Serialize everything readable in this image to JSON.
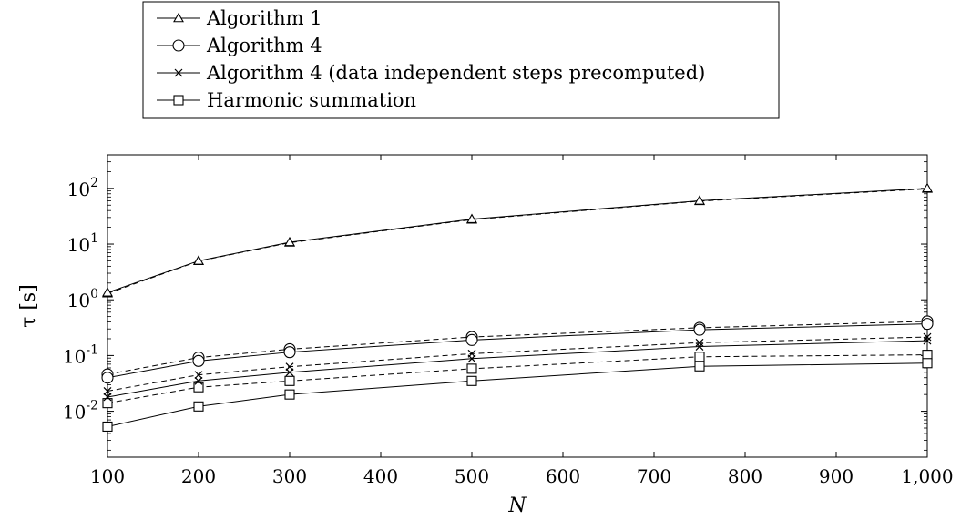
{
  "chart_data": {
    "type": "line",
    "title": "",
    "xlabel": "N",
    "ylabel": "τ [s]",
    "x_scale": "linear",
    "y_scale": "log",
    "xlim": [
      100,
      1000
    ],
    "ylim": [
      0.0015,
      400
    ],
    "x_ticks": [
      100,
      200,
      300,
      400,
      500,
      600,
      700,
      800,
      900,
      1000
    ],
    "x_tick_labels": [
      "100",
      "200",
      "300",
      "400",
      "500",
      "600",
      "700",
      "800",
      "900",
      "1,000"
    ],
    "y_ticks": [
      0.01,
      0.1,
      1,
      10,
      100
    ],
    "y_tick_labels": [
      {
        "base": "10",
        "exp": "-2"
      },
      {
        "base": "10",
        "exp": "-1"
      },
      {
        "base": "10",
        "exp": "0"
      },
      {
        "base": "10",
        "exp": "1"
      },
      {
        "base": "10",
        "exp": "2"
      }
    ],
    "grid": false,
    "legend_position": "top-left, above plot",
    "line_color": "#000000",
    "series": [
      {
        "name": "Algorithm 1",
        "marker": "triangle",
        "dash": "solid",
        "in_legend": true,
        "x": [
          100,
          200,
          300,
          500,
          750,
          1000
        ],
        "y": [
          1.35,
          5.0,
          10.8,
          28.0,
          60.0,
          100.0
        ]
      },
      {
        "name": "Algorithm 4",
        "marker": "circle",
        "dash": "solid",
        "in_legend": true,
        "x": [
          100,
          200,
          300,
          500,
          750,
          1000
        ],
        "y": [
          0.04,
          0.08,
          0.115,
          0.19,
          0.29,
          0.37
        ]
      },
      {
        "name": "Algorithm 4 (data independent steps precomputed)",
        "marker": "cross",
        "dash": "solid",
        "in_legend": true,
        "x": [
          100,
          200,
          300,
          500,
          750,
          1000
        ],
        "y": [
          0.018,
          0.035,
          0.05,
          0.088,
          0.145,
          0.185
        ]
      },
      {
        "name": "Harmonic summation",
        "marker": "square",
        "dash": "solid",
        "in_legend": true,
        "x": [
          100,
          200,
          300,
          500,
          750,
          1000
        ],
        "y": [
          0.0053,
          0.0122,
          0.02,
          0.035,
          0.064,
          0.073
        ]
      },
      {
        "name": "",
        "marker": "triangle",
        "dash": "dashed",
        "in_legend": false,
        "x": [
          100,
          200,
          300,
          500,
          750,
          1000
        ],
        "y": [
          1.3,
          4.95,
          10.6,
          27.5,
          59.0,
          98.0
        ]
      },
      {
        "name": "",
        "marker": "circle",
        "dash": "dashed",
        "in_legend": false,
        "x": [
          100,
          200,
          300,
          500,
          750,
          1000
        ],
        "y": [
          0.046,
          0.092,
          0.13,
          0.215,
          0.315,
          0.41
        ]
      },
      {
        "name": "",
        "marker": "cross",
        "dash": "dashed",
        "in_legend": false,
        "x": [
          100,
          200,
          300,
          500,
          750,
          1000
        ],
        "y": [
          0.023,
          0.045,
          0.063,
          0.108,
          0.17,
          0.215
        ]
      },
      {
        "name": "",
        "marker": "square",
        "dash": "dashed",
        "in_legend": false,
        "x": [
          100,
          200,
          300,
          500,
          750,
          1000
        ],
        "y": [
          0.014,
          0.027,
          0.035,
          0.058,
          0.095,
          0.103
        ]
      }
    ]
  }
}
